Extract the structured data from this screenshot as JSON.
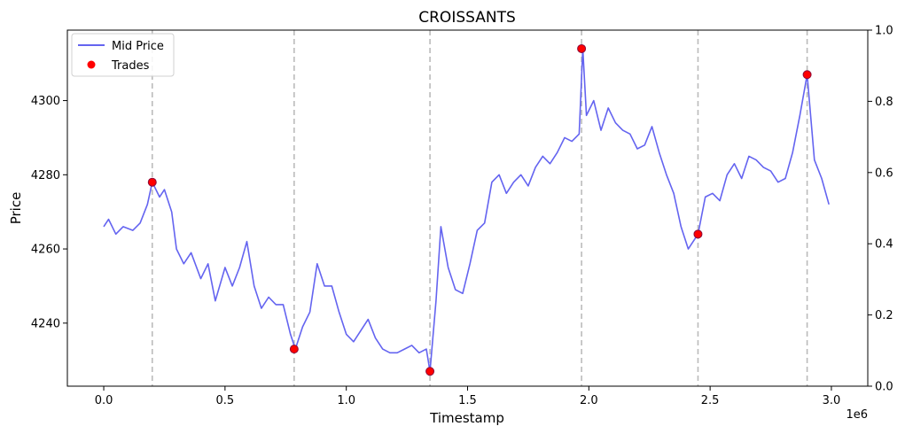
{
  "chart_data": {
    "type": "line",
    "title": "CROISSANTS",
    "xlabel": "Timestamp",
    "ylabel": "Price",
    "x_offset_label": "1e6",
    "xlim": [
      -0.15,
      3.15
    ],
    "ylim": [
      4223,
      4319
    ],
    "y2lim": [
      0.0,
      1.0
    ],
    "x_ticks": [
      0.0,
      0.5,
      1.0,
      1.5,
      2.0,
      2.5,
      3.0
    ],
    "x_tick_labels": [
      "0.0",
      "0.5",
      "1.0",
      "1.5",
      "2.0",
      "2.5",
      "3.0"
    ],
    "y_ticks": [
      4240,
      4260,
      4280,
      4300
    ],
    "y_tick_labels": [
      "4240",
      "4260",
      "4280",
      "4300"
    ],
    "y2_ticks": [
      0.0,
      0.2,
      0.4,
      0.6,
      0.8,
      1.0
    ],
    "y2_tick_labels": [
      "0.0",
      "0.2",
      "0.4",
      "0.6",
      "0.8",
      "1.0"
    ],
    "grid": false,
    "legend_position": "top-left",
    "series": [
      {
        "name": "Mid Price",
        "kind": "line",
        "color": "#6464f0",
        "x": [
          0.0,
          0.02,
          0.05,
          0.08,
          0.12,
          0.15,
          0.18,
          0.2,
          0.23,
          0.25,
          0.28,
          0.3,
          0.33,
          0.36,
          0.4,
          0.43,
          0.46,
          0.5,
          0.53,
          0.56,
          0.59,
          0.62,
          0.65,
          0.68,
          0.71,
          0.74,
          0.77,
          0.79,
          0.82,
          0.85,
          0.88,
          0.91,
          0.94,
          0.97,
          1.0,
          1.03,
          1.06,
          1.09,
          1.12,
          1.15,
          1.18,
          1.21,
          1.24,
          1.27,
          1.3,
          1.33,
          1.345,
          1.37,
          1.39,
          1.42,
          1.45,
          1.48,
          1.51,
          1.54,
          1.57,
          1.6,
          1.63,
          1.66,
          1.69,
          1.72,
          1.75,
          1.78,
          1.81,
          1.84,
          1.87,
          1.9,
          1.93,
          1.96,
          1.975,
          1.99,
          2.02,
          2.05,
          2.08,
          2.11,
          2.14,
          2.17,
          2.2,
          2.23,
          2.26,
          2.29,
          2.32,
          2.35,
          2.38,
          2.41,
          2.45,
          2.48,
          2.51,
          2.54,
          2.57,
          2.6,
          2.63,
          2.66,
          2.69,
          2.72,
          2.75,
          2.78,
          2.81,
          2.84,
          2.87,
          2.9,
          2.93,
          2.96,
          2.99
        ],
        "values": [
          4266,
          4268,
          4264,
          4266,
          4265,
          4267,
          4272,
          4278,
          4274,
          4276,
          4270,
          4260,
          4256,
          4259,
          4252,
          4256,
          4246,
          4255,
          4250,
          4255,
          4262,
          4250,
          4244,
          4247,
          4245,
          4245,
          4237,
          4233,
          4239,
          4243,
          4256,
          4250,
          4250,
          4243,
          4237,
          4235,
          4238,
          4241,
          4236,
          4233,
          4232,
          4232,
          4233,
          4234,
          4232,
          4233,
          4227,
          4246,
          4266,
          4255,
          4249,
          4248,
          4256,
          4265,
          4267,
          4278,
          4280,
          4275,
          4278,
          4280,
          4277,
          4282,
          4285,
          4283,
          4286,
          4290,
          4289,
          4291,
          4314,
          4296,
          4300,
          4292,
          4298,
          4294,
          4292,
          4291,
          4287,
          4288,
          4293,
          4286,
          4280,
          4275,
          4266,
          4260,
          4264,
          4274,
          4275,
          4273,
          4280,
          4283,
          4279,
          4285,
          4284,
          4282,
          4281,
          4278,
          4279,
          4286,
          4296,
          4307,
          4284,
          4279,
          4272
        ]
      },
      {
        "name": "Trades",
        "kind": "scatter",
        "color": "#ff0000",
        "x": [
          0.2,
          0.785,
          1.345,
          1.97,
          2.45,
          2.9
        ],
        "values": [
          4278,
          4233,
          4227,
          4314,
          4264,
          4307
        ]
      }
    ],
    "trade_marker_lines": {
      "color": "#bbbbbb",
      "x": [
        0.2,
        0.785,
        1.345,
        1.97,
        2.45,
        2.9
      ]
    }
  }
}
